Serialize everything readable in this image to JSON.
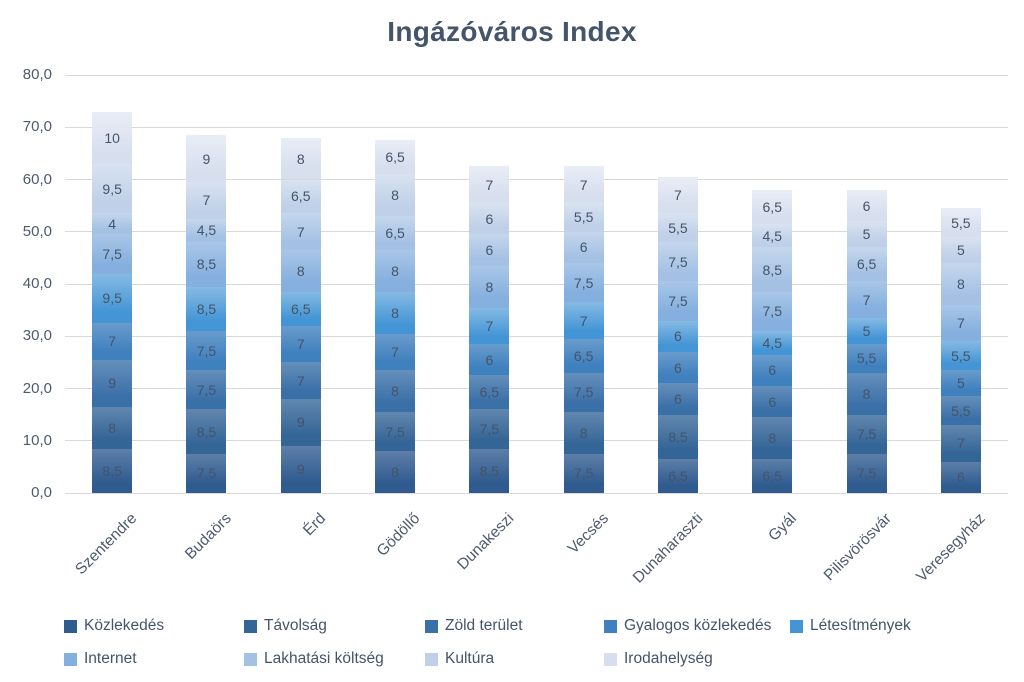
{
  "title": "Ingázóváros Index",
  "chart_data": {
    "type": "bar",
    "stacked": true,
    "title": "Ingázóváros Index",
    "grid": true,
    "legend_position": "bottom",
    "label_decimal_separator": ",",
    "ylim": [
      0,
      80
    ],
    "ytick_step": 10,
    "ytick_labels": [
      "0,0",
      "10,0",
      "20,0",
      "30,0",
      "40,0",
      "50,0",
      "60,0",
      "70,0",
      "80,0"
    ],
    "categories": [
      "Szentendre",
      "Budaörs",
      "Érd",
      "Gödöllő",
      "Dunakeszi",
      "Vecsés",
      "Dunaharaszti",
      "Gyál",
      "Pilisvörösvár",
      "Veresegyház"
    ],
    "series": [
      {
        "name": "Közlekedés",
        "color": "#2F5B8F",
        "color_light": "#5D7FA8",
        "values": [
          8.5,
          7.5,
          9,
          8,
          8.5,
          7.5,
          6.5,
          6.5,
          7.5,
          6
        ]
      },
      {
        "name": "Távolság",
        "color": "#346597",
        "color_light": "#6187AE",
        "values": [
          8,
          8.5,
          9,
          7.5,
          7.5,
          8,
          8.5,
          8,
          7.5,
          7
        ]
      },
      {
        "name": "Zöld terület",
        "color": "#3A70A8",
        "color_light": "#658FBB",
        "values": [
          9,
          7.5,
          7,
          8,
          6.5,
          7.5,
          6,
          6,
          8,
          5.5
        ]
      },
      {
        "name": "Gyalogos közlekedés",
        "color": "#3F80BE",
        "color_light": "#699CCC",
        "values": [
          7,
          7.5,
          7,
          7,
          6,
          6.5,
          6,
          6,
          5.5,
          5
        ]
      },
      {
        "name": "Létesítmények",
        "color": "#4495D5",
        "color_light": "#85BAE4",
        "values": [
          9.5,
          8.5,
          6.5,
          8,
          7,
          7,
          6,
          4.5,
          5,
          5.5
        ]
      },
      {
        "name": "Internet",
        "color": "#84AFDE",
        "color_light": "#A9C7E8",
        "values": [
          7.5,
          8.5,
          8,
          8,
          8,
          7.5,
          7.5,
          7.5,
          7,
          7
        ]
      },
      {
        "name": "Lakhatási költség",
        "color": "#A4C1E4",
        "color_light": "#C4D7ED",
        "values": [
          4,
          4.5,
          7,
          6.5,
          6,
          6,
          7.5,
          8.5,
          6.5,
          8
        ]
      },
      {
        "name": "Kultúra",
        "color": "#BFD0E8",
        "color_light": "#D9E3F1",
        "values": [
          9.5,
          7,
          6.5,
          8,
          6,
          5.5,
          5.5,
          4.5,
          5,
          5
        ]
      },
      {
        "name": "Irodahelység",
        "color": "#D7DFEE",
        "color_light": "#E9EDF6",
        "values": [
          10,
          9,
          8,
          6.5,
          7,
          7,
          7,
          6.5,
          6,
          5.5
        ]
      }
    ],
    "totals": [
      73,
      68.5,
      68,
      67.5,
      62.5,
      62.5,
      60.5,
      58,
      58,
      54.5
    ]
  },
  "colors": {
    "title_text": "#44546A",
    "axis_text": "#4E5A6E",
    "segment_label_text": "#44546A",
    "gridline": "#D9D9D9",
    "background": "#FFFFFF"
  }
}
